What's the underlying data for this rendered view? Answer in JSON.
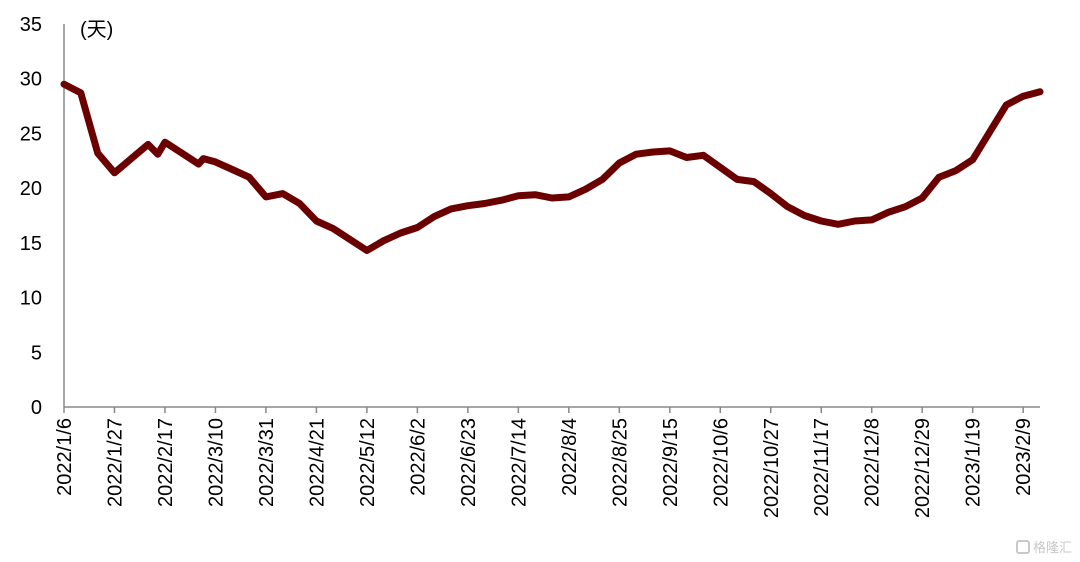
{
  "chart_data": {
    "type": "line",
    "unit_label": "(天)",
    "ylim": [
      0,
      35
    ],
    "yticks": [
      0,
      5,
      10,
      15,
      20,
      25,
      30,
      35
    ],
    "xtick_labels": [
      "2022/1/6",
      "2022/1/27",
      "2022/2/17",
      "2022/3/10",
      "2022/3/31",
      "2022/4/21",
      "2022/5/12",
      "2022/6/2",
      "2022/6/23",
      "2022/7/14",
      "2022/8/4",
      "2022/8/25",
      "2022/9/15",
      "2022/10/6",
      "2022/10/27",
      "2022/11/17",
      "2022/12/8",
      "2022/12/29",
      "2023/1/19",
      "2023/2/9"
    ],
    "grid": false,
    "legend": "none",
    "line_color": "#6b0000",
    "series": [
      {
        "x": [
          "2022/1/6",
          "2022/1/13",
          "2022/1/20",
          "2022/1/27",
          "2022/2/3",
          "2022/2/10",
          "2022/2/14",
          "2022/2/17",
          "2022/2/24",
          "2022/3/3",
          "2022/3/5",
          "2022/3/10",
          "2022/3/17",
          "2022/3/24",
          "2022/3/31",
          "2022/4/7",
          "2022/4/14",
          "2022/4/21",
          "2022/4/28",
          "2022/5/5",
          "2022/5/12",
          "2022/5/19",
          "2022/5/26",
          "2022/6/2",
          "2022/6/9",
          "2022/6/16",
          "2022/6/23",
          "2022/6/30",
          "2022/7/7",
          "2022/7/14",
          "2022/7/21",
          "2022/7/28",
          "2022/8/4",
          "2022/8/11",
          "2022/8/18",
          "2022/8/25",
          "2022/9/1",
          "2022/9/8",
          "2022/9/15",
          "2022/9/22",
          "2022/9/29",
          "2022/10/6",
          "2022/10/13",
          "2022/10/20",
          "2022/10/27",
          "2022/11/3",
          "2022/11/10",
          "2022/11/17",
          "2022/11/24",
          "2022/12/1",
          "2022/12/8",
          "2022/12/15",
          "2022/12/22",
          "2022/12/29",
          "2023/1/5",
          "2023/1/12",
          "2023/1/19",
          "2023/1/26",
          "2023/2/2",
          "2023/2/9",
          "2023/2/16"
        ],
        "y": [
          29.5,
          28.7,
          23.2,
          21.4,
          22.7,
          24.0,
          23.1,
          24.2,
          23.2,
          22.2,
          22.7,
          22.4,
          21.7,
          21.0,
          19.2,
          19.5,
          18.6,
          17.0,
          16.3,
          15.3,
          14.3,
          15.2,
          15.9,
          16.4,
          17.4,
          18.1,
          18.4,
          18.6,
          18.9,
          19.3,
          19.4,
          19.1,
          19.2,
          19.9,
          20.8,
          22.3,
          23.1,
          23.3,
          23.4,
          22.8,
          23.0,
          21.9,
          20.8,
          20.6,
          19.5,
          18.3,
          17.5,
          17.0,
          16.7,
          17.0,
          17.1,
          17.8,
          18.3,
          19.1,
          21.0,
          21.6,
          22.6,
          25.1,
          27.6,
          28.4,
          28.8
        ]
      }
    ]
  },
  "watermark": {
    "text": "格隆汇"
  }
}
